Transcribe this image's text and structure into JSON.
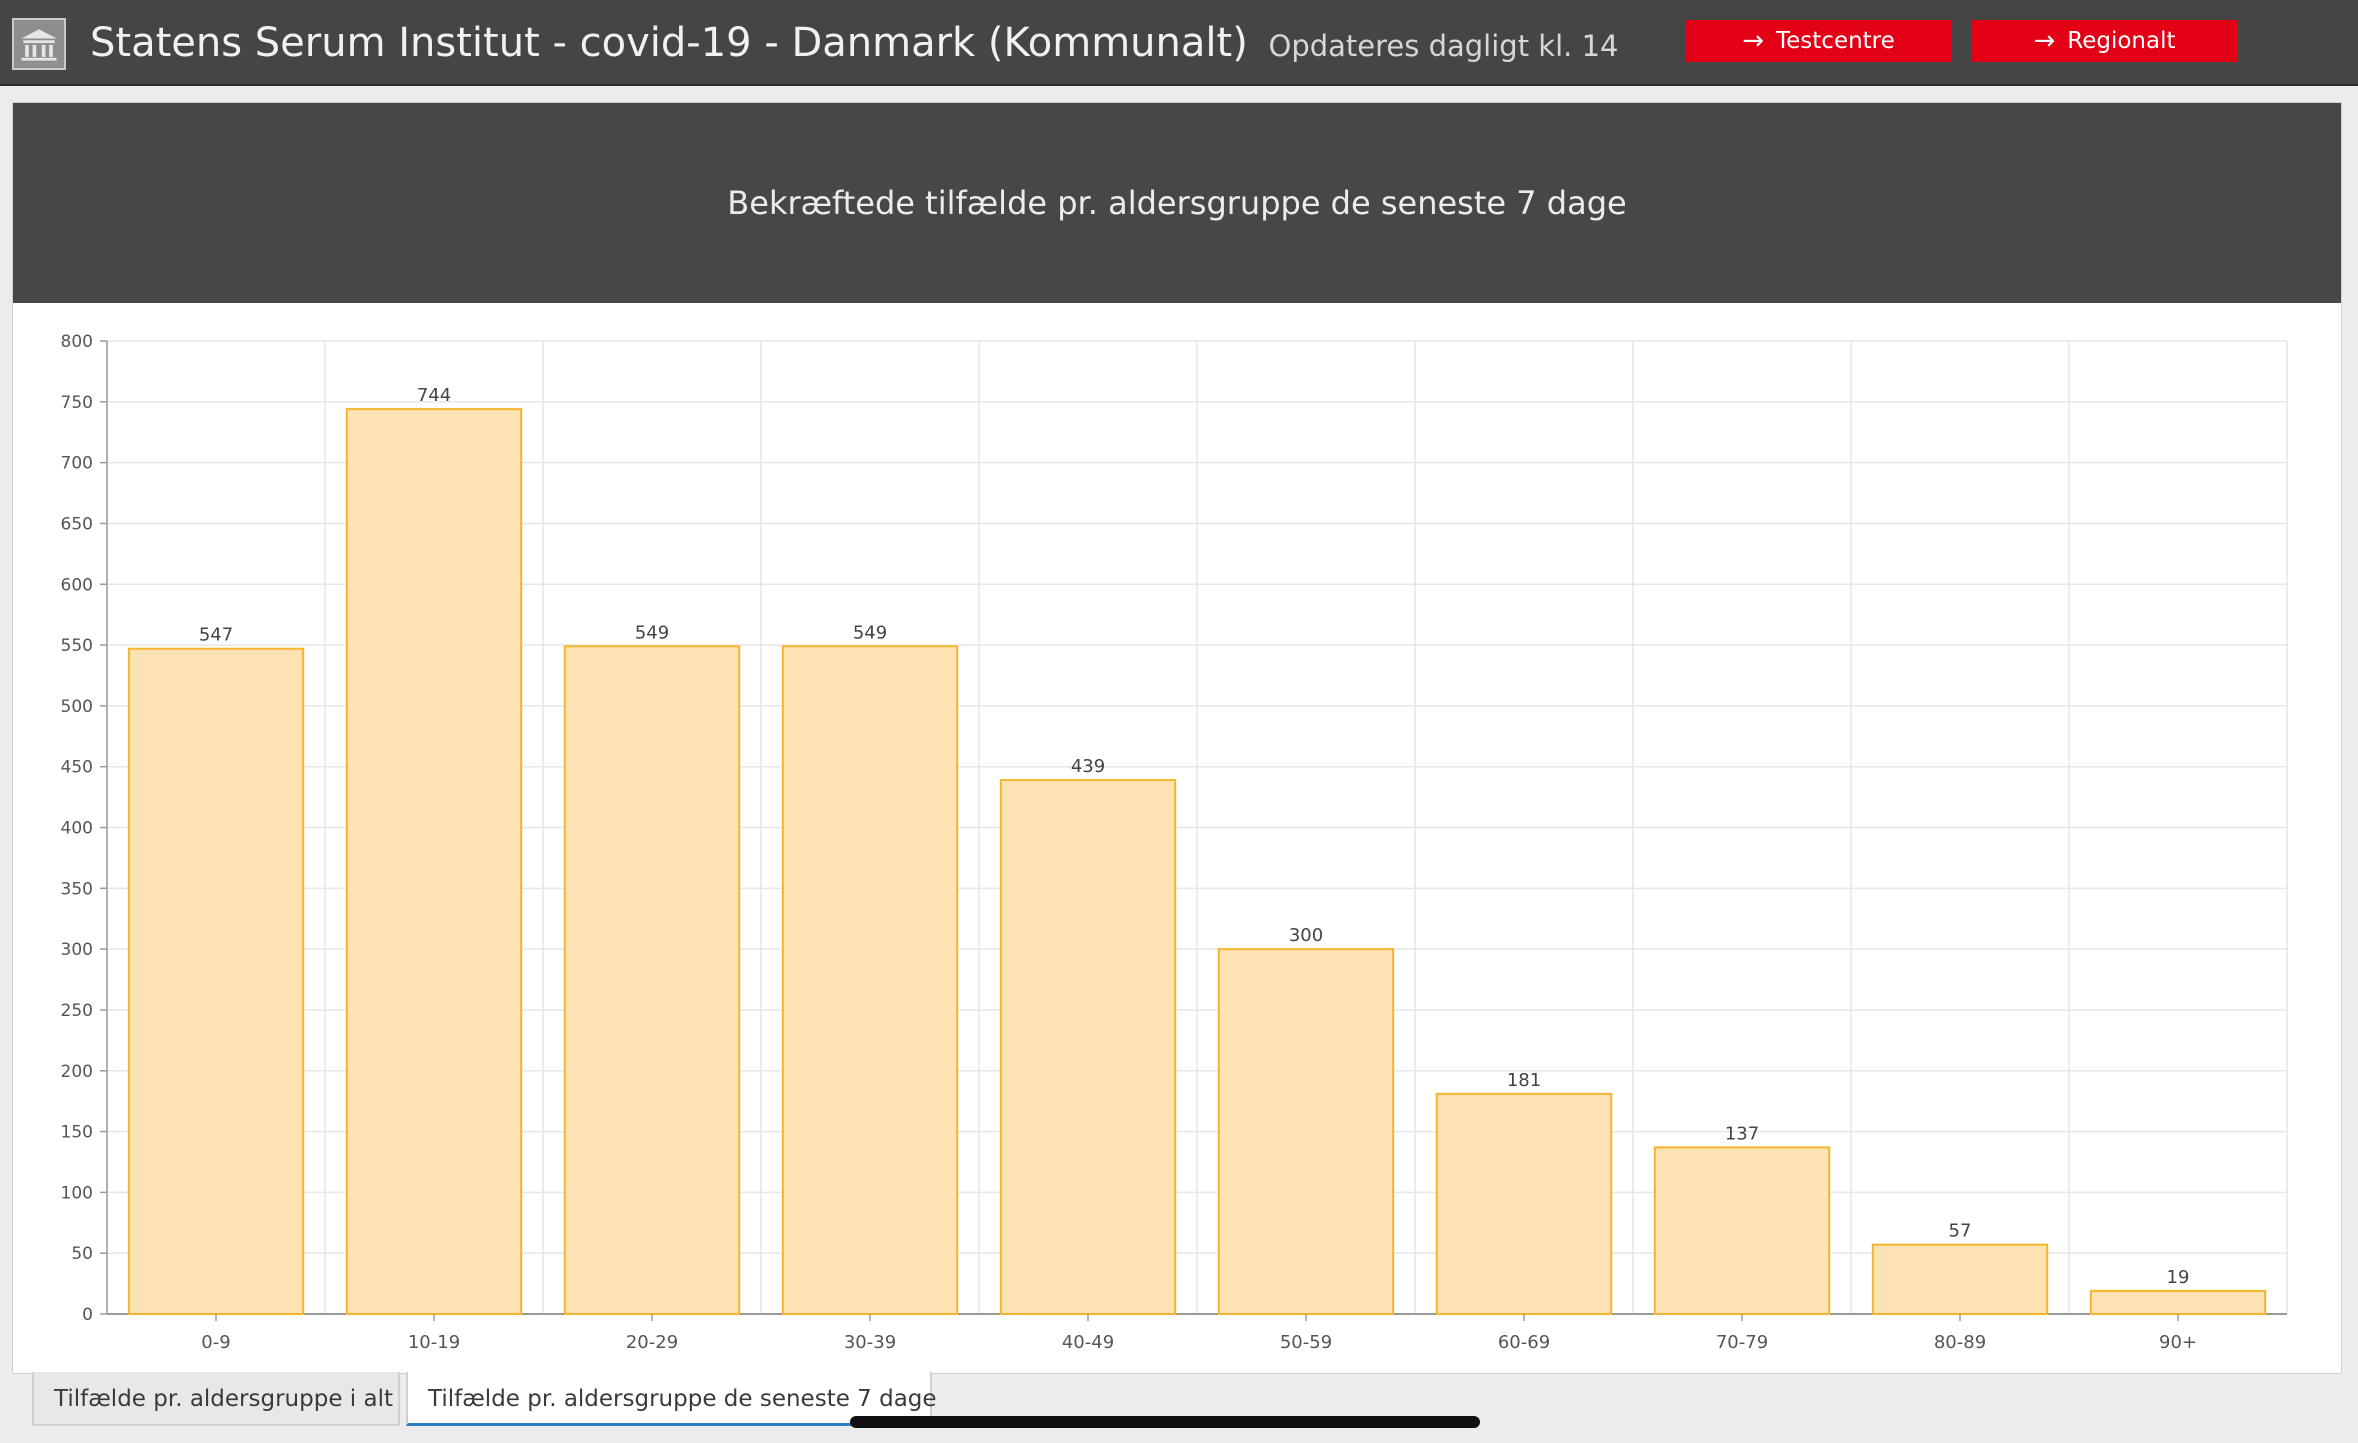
{
  "header": {
    "title": "Statens Serum Institut - covid-19 - Danmark (Kommunalt)",
    "subtitle": "Opdateres dagligt kl. 14",
    "buttons": [
      {
        "label": "Testcentre",
        "icon": "arrow-right-icon"
      },
      {
        "label": "Regionalt",
        "icon": "arrow-right-icon"
      }
    ],
    "logo_icon": "building-icon"
  },
  "tabs": [
    {
      "label": "Tilfælde pr. aldersgruppe i alt",
      "active": false
    },
    {
      "label": "Tilfælde pr. aldersgruppe de seneste 7 dage",
      "active": true
    }
  ],
  "colors": {
    "bar_fill": "#fde2b3",
    "bar_stroke": "#f4b42e",
    "header_bg": "#454545",
    "button_bg": "#e30016",
    "tab_underline": "#2f7fc8"
  },
  "chart_data": {
    "type": "bar",
    "title": "Bekræftede tilfælde pr. aldersgruppe de seneste 7 dage",
    "categories": [
      "0-9",
      "10-19",
      "20-29",
      "30-39",
      "40-49",
      "50-59",
      "60-69",
      "70-79",
      "80-89",
      "90+"
    ],
    "values": [
      547,
      744,
      549,
      549,
      439,
      300,
      181,
      137,
      57,
      19
    ],
    "y_ticks": [
      0,
      50,
      100,
      150,
      200,
      250,
      300,
      350,
      400,
      450,
      500,
      550,
      600,
      650,
      700,
      750,
      800
    ],
    "ylim": [
      0,
      800
    ],
    "xlabel": "",
    "ylabel": "",
    "grid": true,
    "data_labels": true
  }
}
